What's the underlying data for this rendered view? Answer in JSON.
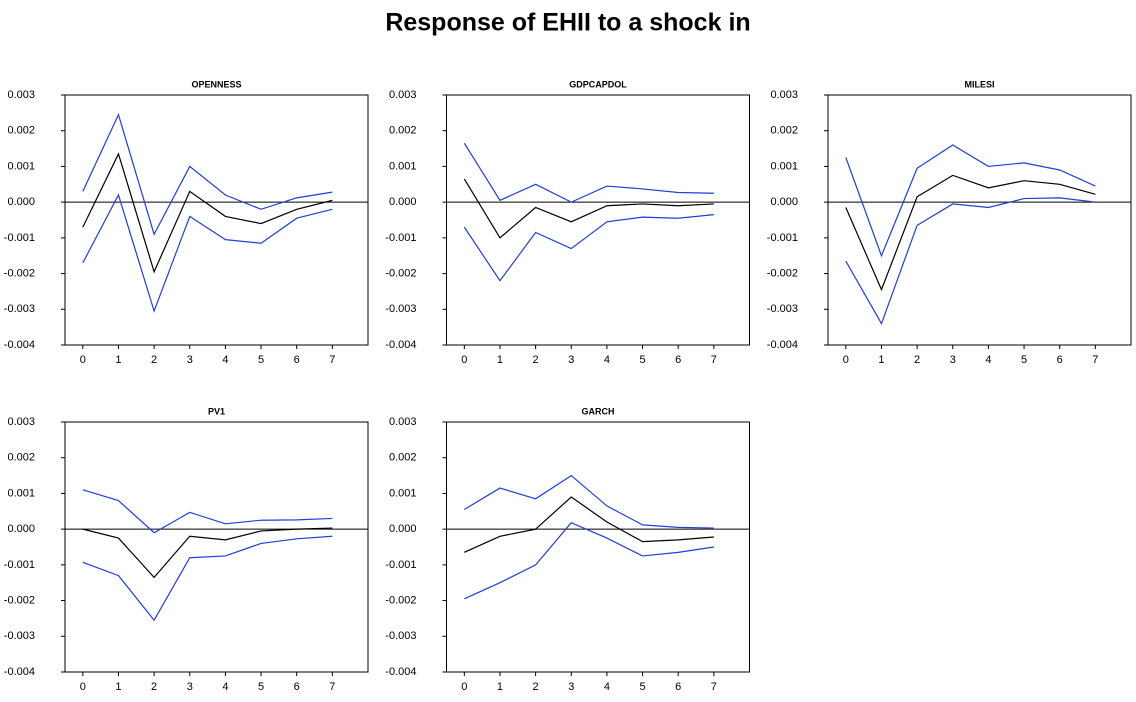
{
  "title": "Response of EHII to a shock in",
  "chart_data": [
    {
      "type": "line",
      "title": "OPENNESS",
      "x": [
        0,
        1,
        2,
        3,
        4,
        5,
        6,
        7
      ],
      "xlim": [
        -0.5,
        8
      ],
      "xticks": [
        0,
        1,
        2,
        3,
        4,
        5,
        6,
        7
      ],
      "ylim": [
        -0.004,
        0.003
      ],
      "yticks": [
        -0.004,
        -0.003,
        -0.002,
        -0.001,
        {
          "value": 0,
          "label": "0.000"
        },
        0.001,
        0.002,
        0.003
      ],
      "series": [
        {
          "color": "#000000",
          "values": [
            -0.0007,
            0.00135,
            -0.00195,
            0.0003,
            -0.0004,
            -0.0006,
            -0.0002,
            5e-05
          ]
        },
        {
          "color": "#1f3fd6",
          "values": [
            0.0003,
            0.00245,
            -0.0009,
            0.001,
            0.0002,
            -0.0002,
            0.00012,
            0.00028
          ]
        },
        {
          "color": "#1f3fd6",
          "values": [
            -0.0017,
            0.0002,
            -0.00305,
            -0.0004,
            -0.00105,
            -0.00115,
            -0.00045,
            -0.0002
          ]
        }
      ]
    },
    {
      "type": "line",
      "title": "GDPCAPDOL",
      "x": [
        0,
        1,
        2,
        3,
        4,
        5,
        6,
        7
      ],
      "xlim": [
        -0.5,
        8
      ],
      "xticks": [
        0,
        1,
        2,
        3,
        4,
        5,
        6,
        7
      ],
      "ylim": [
        -0.004,
        0.003
      ],
      "yticks": [
        -0.004,
        -0.003,
        -0.002,
        -0.001,
        {
          "value": 0,
          "label": "0.000"
        },
        0.001,
        0.002,
        0.003
      ],
      "series": [
        {
          "color": "#000000",
          "values": [
            0.00065,
            -0.001,
            -0.00015,
            -0.00055,
            -0.0001,
            -5e-05,
            -0.0001,
            -5e-05
          ]
        },
        {
          "color": "#1f3fd6",
          "values": [
            0.00165,
            5e-05,
            0.0005,
            0.0,
            0.00045,
            0.00037,
            0.00027,
            0.00025
          ]
        },
        {
          "color": "#1f3fd6",
          "values": [
            -0.0007,
            -0.0022,
            -0.00085,
            -0.0013,
            -0.00055,
            -0.00042,
            -0.00045,
            -0.00035
          ]
        }
      ]
    },
    {
      "type": "line",
      "title": "MILESI",
      "x": [
        0,
        1,
        2,
        3,
        4,
        5,
        6,
        7
      ],
      "xlim": [
        -0.5,
        8
      ],
      "xticks": [
        0,
        1,
        2,
        3,
        4,
        5,
        6,
        7
      ],
      "ylim": [
        -0.004,
        0.003
      ],
      "yticks": [
        -0.004,
        -0.003,
        -0.002,
        -0.001,
        {
          "value": 0,
          "label": "0.000"
        },
        0.001,
        0.002,
        0.003
      ],
      "series": [
        {
          "color": "#000000",
          "values": [
            -0.00015,
            -0.00245,
            0.00015,
            0.00075,
            0.0004,
            0.0006,
            0.0005,
            0.00022
          ]
        },
        {
          "color": "#1f3fd6",
          "values": [
            0.00125,
            -0.0015,
            0.00095,
            0.0016,
            0.001,
            0.0011,
            0.0009,
            0.00045
          ]
        },
        {
          "color": "#1f3fd6",
          "values": [
            -0.00165,
            -0.0034,
            -0.00065,
            -5e-05,
            -0.00015,
            0.0001,
            0.00012,
            0.0
          ]
        }
      ]
    },
    {
      "type": "line",
      "title": "PV1",
      "x": [
        0,
        1,
        2,
        3,
        4,
        5,
        6,
        7
      ],
      "xlim": [
        -0.5,
        8
      ],
      "xticks": [
        0,
        1,
        2,
        3,
        4,
        5,
        6,
        7
      ],
      "ylim": [
        -0.004,
        0.003
      ],
      "yticks": [
        -0.004,
        -0.003,
        -0.002,
        -0.001,
        {
          "value": 0,
          "label": "0.000"
        },
        0.001,
        0.002,
        0.003
      ],
      "series": [
        {
          "color": "#000000",
          "values": [
            0.0,
            -0.00025,
            -0.00135,
            -0.0002,
            -0.0003,
            -5e-05,
            0.0,
            3e-05
          ]
        },
        {
          "color": "#1f3fd6",
          "values": [
            0.0011,
            0.0008,
            -0.0001,
            0.00047,
            0.00015,
            0.00025,
            0.00026,
            0.0003
          ]
        },
        {
          "color": "#1f3fd6",
          "values": [
            -0.00093,
            -0.0013,
            -0.00255,
            -0.0008,
            -0.00075,
            -0.0004,
            -0.00027,
            -0.0002
          ]
        }
      ]
    },
    {
      "type": "line",
      "title": "GARCH",
      "x": [
        0,
        1,
        2,
        3,
        4,
        5,
        6,
        7
      ],
      "xlim": [
        -0.5,
        8
      ],
      "xticks": [
        0,
        1,
        2,
        3,
        4,
        5,
        6,
        7
      ],
      "ylim": [
        -0.004,
        0.003
      ],
      "yticks": [
        -0.004,
        -0.003,
        -0.002,
        -0.001,
        {
          "value": 0,
          "label": "0.000"
        },
        0.001,
        0.002,
        0.003
      ],
      "series": [
        {
          "color": "#000000",
          "values": [
            -0.00065,
            -0.0002,
            0.0,
            0.0009,
            0.0002,
            -0.00035,
            -0.0003,
            -0.00022
          ]
        },
        {
          "color": "#1f3fd6",
          "values": [
            0.00055,
            0.00115,
            0.00085,
            0.0015,
            0.00065,
            0.00012,
            5e-05,
            3e-05
          ]
        },
        {
          "color": "#1f3fd6",
          "values": [
            -0.00195,
            -0.0015,
            -0.001,
            0.00018,
            -0.00025,
            -0.00075,
            -0.00065,
            -0.0005
          ]
        }
      ]
    }
  ]
}
